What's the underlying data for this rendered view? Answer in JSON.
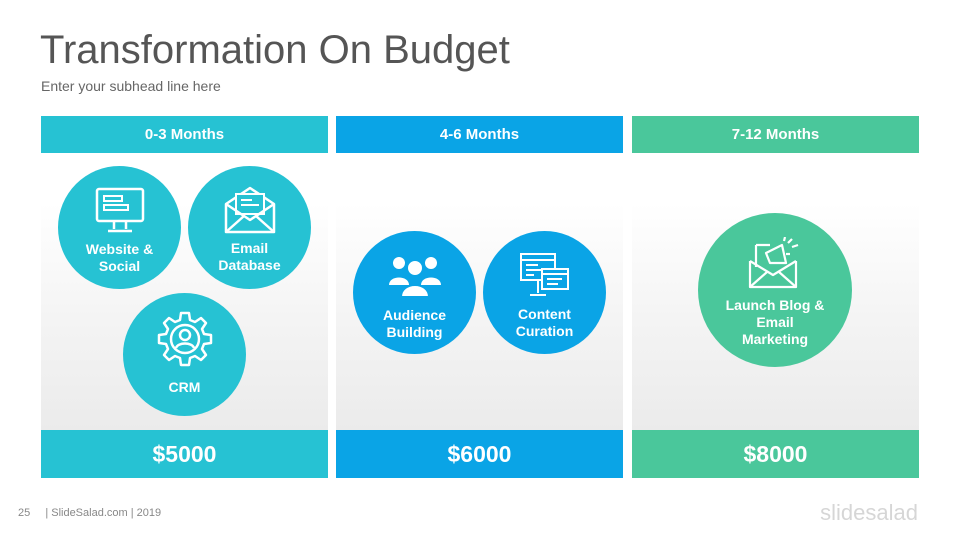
{
  "slide": {
    "title": "Transformation On Budget",
    "subtitle": "Enter your subhead line here"
  },
  "colors": {
    "teal": "#26c2d3",
    "blue": "#0aa4e6",
    "green": "#4ac79b"
  },
  "columns": [
    {
      "header": "0-3 Months",
      "budget": "$5000",
      "items": [
        {
          "label_lines": [
            "Website &",
            "Social"
          ],
          "icon": "monitor-icon"
        },
        {
          "label_lines": [
            "Email",
            "Database"
          ],
          "icon": "envelope-icon"
        },
        {
          "label_lines": [
            "CRM"
          ],
          "icon": "gear-user-icon"
        }
      ]
    },
    {
      "header": "4-6 Months",
      "budget": "$6000",
      "items": [
        {
          "label_lines": [
            "Audience",
            "Building"
          ],
          "icon": "people-group-icon"
        },
        {
          "label_lines": [
            "Content",
            "Curation"
          ],
          "icon": "screens-icon"
        }
      ]
    },
    {
      "header": "7-12 Months",
      "budget": "$8000",
      "items": [
        {
          "label_lines": [
            "Launch Blog &",
            "Email",
            "Marketing"
          ],
          "icon": "megaphone-envelope-icon"
        }
      ]
    }
  ],
  "footer": {
    "page_number": "25",
    "credit": "| SlideSalad.com | 2019",
    "brand": "slidesalad"
  }
}
